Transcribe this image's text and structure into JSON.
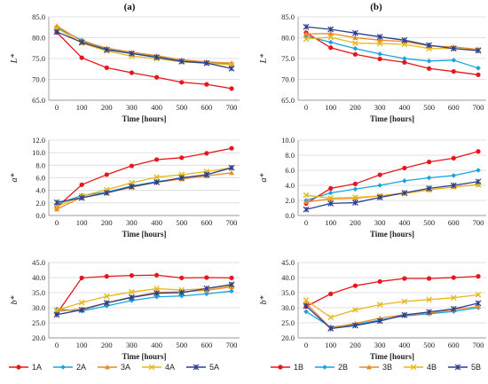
{
  "panel_titles": [
    "(a)",
    "(b)"
  ],
  "chart_data": [
    {
      "id": "a-L",
      "type": "line",
      "ylabel": "L*",
      "xlabel": "Time [hours]",
      "x": [
        0,
        100,
        200,
        300,
        400,
        500,
        600,
        700
      ],
      "ylim": [
        65.0,
        85.0
      ],
      "yticks": [
        "65.0",
        "70.0",
        "75.0",
        "80.0",
        "85.0"
      ],
      "series": [
        {
          "name": "1A",
          "values": [
            81.3,
            75.2,
            72.8,
            71.6,
            70.5,
            69.3,
            68.8,
            67.8
          ]
        },
        {
          "name": "2A",
          "values": [
            82.4,
            79.4,
            77.3,
            76.3,
            75.5,
            74.4,
            74.1,
            73.6
          ]
        },
        {
          "name": "3A",
          "values": [
            82.8,
            79.2,
            77.5,
            76.5,
            75.7,
            74.7,
            74.2,
            73.9
          ]
        },
        {
          "name": "4A",
          "values": [
            82.3,
            78.7,
            76.8,
            75.6,
            75.0,
            74.2,
            73.9,
            73.5
          ]
        },
        {
          "name": "5A",
          "values": [
            81.4,
            78.9,
            77.1,
            76.2,
            75.3,
            74.3,
            73.9,
            72.6
          ]
        }
      ]
    },
    {
      "id": "b-L",
      "type": "line",
      "ylabel": "L*",
      "xlabel": "Time [hours]",
      "x": [
        0,
        100,
        200,
        300,
        400,
        500,
        600,
        700
      ],
      "ylim": [
        65.0,
        85.0
      ],
      "yticks": [
        "65.0",
        "70.0",
        "75.0",
        "80.0",
        "85.0"
      ],
      "series": [
        {
          "name": "1B",
          "values": [
            81.2,
            77.6,
            76.0,
            74.9,
            74.1,
            72.6,
            71.9,
            71.1
          ]
        },
        {
          "name": "2B",
          "values": [
            80.4,
            78.9,
            77.4,
            76.1,
            75.0,
            74.4,
            74.6,
            72.7
          ]
        },
        {
          "name": "3B",
          "values": [
            80.9,
            81.0,
            80.0,
            79.4,
            79.1,
            78.0,
            77.8,
            77.2
          ]
        },
        {
          "name": "4B",
          "values": [
            79.7,
            80.1,
            78.7,
            78.6,
            78.4,
            77.4,
            77.4,
            77.1
          ]
        },
        {
          "name": "5B",
          "values": [
            82.6,
            82.0,
            81.1,
            80.2,
            79.4,
            78.2,
            77.4,
            76.9
          ]
        }
      ]
    },
    {
      "id": "a-a",
      "type": "line",
      "ylabel": "a*",
      "xlabel": "Time [hours]",
      "x": [
        0,
        100,
        200,
        300,
        400,
        500,
        600,
        700
      ],
      "ylim": [
        0.0,
        12.0
      ],
      "yticks": [
        "0.0",
        "2.0",
        "4.0",
        "6.0",
        "8.0",
        "10.0",
        "12.0"
      ],
      "series": [
        {
          "name": "1A",
          "values": [
            1.3,
            4.9,
            6.5,
            7.9,
            8.9,
            9.2,
            9.9,
            10.7
          ]
        },
        {
          "name": "2A",
          "values": [
            1.8,
            3.2,
            3.7,
            4.7,
            5.4,
            5.9,
            6.5,
            7.6
          ]
        },
        {
          "name": "3A",
          "values": [
            1.0,
            2.9,
            3.6,
            4.5,
            5.3,
            5.8,
            6.3,
            6.8
          ]
        },
        {
          "name": "4A",
          "values": [
            1.4,
            3.1,
            4.1,
            5.2,
            6.1,
            6.5,
            7.0,
            7.6
          ]
        },
        {
          "name": "5A",
          "values": [
            2.1,
            2.8,
            3.6,
            4.6,
            5.3,
            6.0,
            6.5,
            7.6
          ]
        }
      ]
    },
    {
      "id": "b-a",
      "type": "line",
      "ylabel": "a*",
      "xlabel": "Time [hours]",
      "x": [
        0,
        100,
        200,
        300,
        400,
        500,
        600,
        700
      ],
      "ylim": [
        0.0,
        10.0
      ],
      "yticks": [
        "0.0",
        "2.0",
        "4.0",
        "6.0",
        "8.0",
        "10.0"
      ],
      "series": [
        {
          "name": "1B",
          "values": [
            1.6,
            3.6,
            4.2,
            5.4,
            6.3,
            7.1,
            7.6,
            8.5
          ]
        },
        {
          "name": "2B",
          "values": [
            2.0,
            3.0,
            3.5,
            4.0,
            4.6,
            5.0,
            5.3,
            6.0
          ]
        },
        {
          "name": "3B",
          "values": [
            1.8,
            2.2,
            2.3,
            2.6,
            3.0,
            3.4,
            3.8,
            4.1
          ]
        },
        {
          "name": "4B",
          "values": [
            2.7,
            2.3,
            2.4,
            2.6,
            2.9,
            3.4,
            3.8,
            4.1
          ]
        },
        {
          "name": "5B",
          "values": [
            0.8,
            1.6,
            1.7,
            2.4,
            3.0,
            3.6,
            4.0,
            4.5
          ]
        }
      ]
    },
    {
      "id": "a-b",
      "type": "line",
      "ylabel": "b*",
      "xlabel": "Time [hours]",
      "x": [
        0,
        100,
        200,
        300,
        400,
        500,
        600,
        700
      ],
      "ylim": [
        20.0,
        45.0
      ],
      "yticks": [
        "20.0",
        "25.0",
        "30.0",
        "35.0",
        "40.0",
        "45.0"
      ],
      "series": [
        {
          "name": "1A",
          "values": [
            28.0,
            39.9,
            40.4,
            40.7,
            40.8,
            39.9,
            40.0,
            39.9
          ]
        },
        {
          "name": "2A",
          "values": [
            29.5,
            28.9,
            30.6,
            32.4,
            33.6,
            33.9,
            34.6,
            35.5
          ]
        },
        {
          "name": "3A",
          "values": [
            28.8,
            29.6,
            31.6,
            33.6,
            35.1,
            35.3,
            35.8,
            36.9
          ]
        },
        {
          "name": "4A",
          "values": [
            29.2,
            31.7,
            33.8,
            35.2,
            36.3,
            35.9,
            36.3,
            37.3
          ]
        },
        {
          "name": "5A",
          "values": [
            27.7,
            29.3,
            31.6,
            33.4,
            34.8,
            35.0,
            36.4,
            37.7
          ]
        }
      ]
    },
    {
      "id": "b-b",
      "type": "line",
      "ylabel": "b*",
      "xlabel": "Time [hours]",
      "x": [
        0,
        100,
        200,
        300,
        400,
        500,
        600,
        700
      ],
      "ylim": [
        20.0,
        45.0
      ],
      "yticks": [
        "20.0",
        "25.0",
        "30.0",
        "35.0",
        "40.0",
        "45.0"
      ],
      "series": [
        {
          "name": "1B",
          "values": [
            30.4,
            34.6,
            37.3,
            38.7,
            39.7,
            39.7,
            40.0,
            40.4
          ]
        },
        {
          "name": "2B",
          "values": [
            28.7,
            23.6,
            24.4,
            25.9,
            27.3,
            28.0,
            28.8,
            30.0
          ]
        },
        {
          "name": "3B",
          "values": [
            31.5,
            23.3,
            24.8,
            26.5,
            27.7,
            28.2,
            29.4,
            30.4
          ]
        },
        {
          "name": "4B",
          "values": [
            32.5,
            26.8,
            29.3,
            31.0,
            32.1,
            32.7,
            33.3,
            34.3
          ]
        },
        {
          "name": "5B",
          "values": [
            30.6,
            23.1,
            24.1,
            25.6,
            27.6,
            28.6,
            29.6,
            31.5
          ]
        }
      ]
    }
  ],
  "legends": [
    {
      "entries": [
        "1A",
        "2A",
        "3A",
        "4A",
        "5A"
      ]
    },
    {
      "entries": [
        "1B",
        "2B",
        "3B",
        "4B",
        "5B"
      ]
    }
  ],
  "colors": [
    "#e8151b",
    "#1aa3e0",
    "#e88a2a",
    "#e8b71a",
    "#2b3f8f"
  ],
  "markers": [
    "circle",
    "diamond",
    "triangle",
    "x",
    "star"
  ]
}
